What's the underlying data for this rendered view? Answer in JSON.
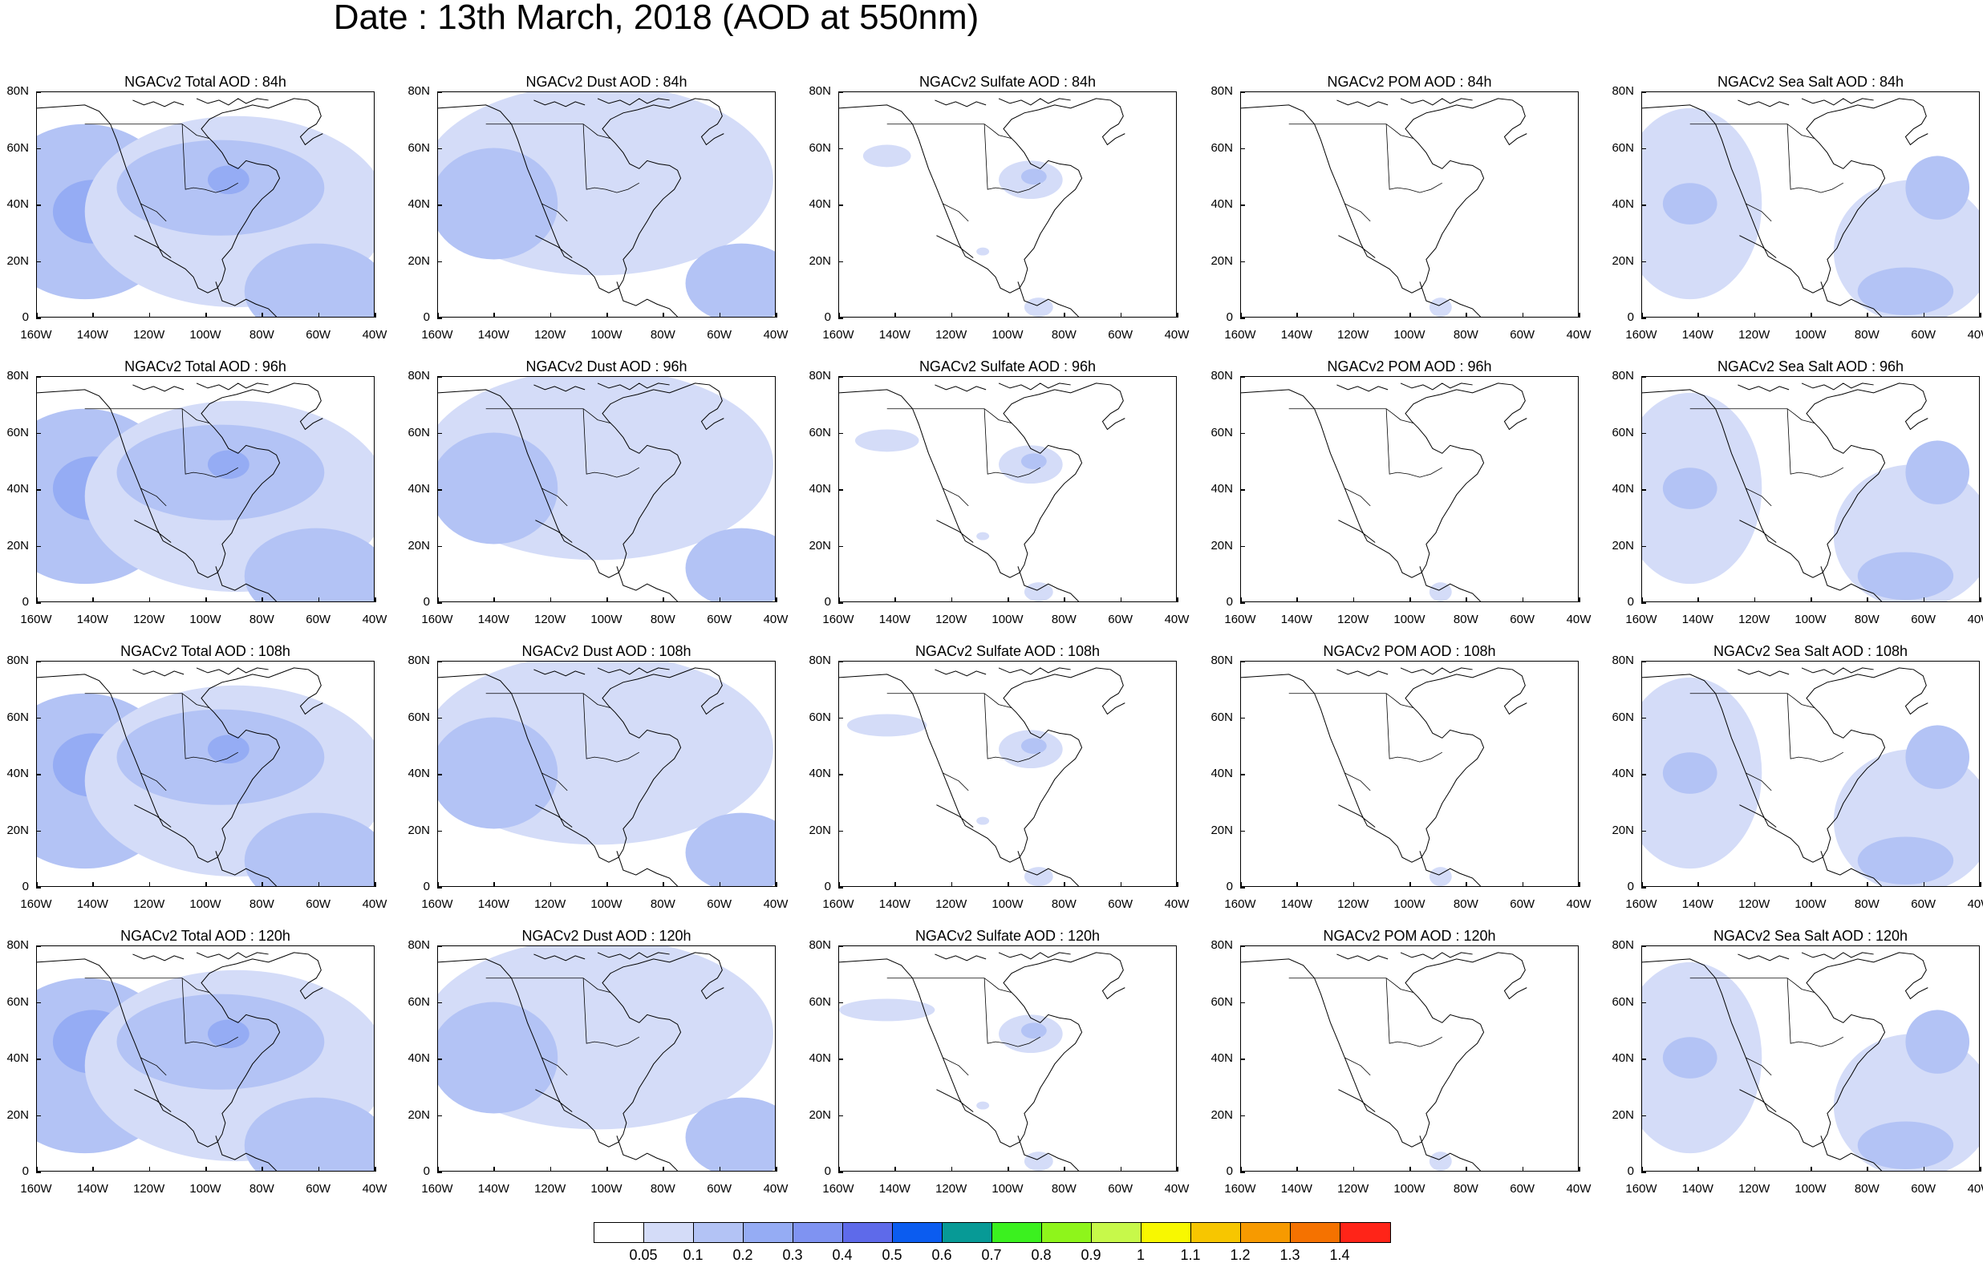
{
  "title": "Date : 13th March, 2018 (AOD at 550nm)",
  "y_tick_labels": [
    "80N",
    "60N",
    "40N",
    "20N",
    "0"
  ],
  "x_tick_labels": [
    "160W",
    "140W",
    "120W",
    "100W",
    "80W",
    "60W",
    "40W"
  ],
  "panels": [
    {
      "title": "NGACv2 Total AOD : 84h",
      "species": "total"
    },
    {
      "title": "NGACv2 Dust AOD : 84h",
      "species": "dust"
    },
    {
      "title": "NGACv2 Sulfate AOD : 84h",
      "species": "sulfate"
    },
    {
      "title": "NGACv2 POM AOD : 84h",
      "species": "pom"
    },
    {
      "title": "NGACv2 Sea Salt AOD : 84h",
      "species": "seasalt"
    },
    {
      "title": "NGACv2 Total AOD : 96h",
      "species": "total"
    },
    {
      "title": "NGACv2 Dust AOD : 96h",
      "species": "dust"
    },
    {
      "title": "NGACv2 Sulfate AOD : 96h",
      "species": "sulfate"
    },
    {
      "title": "NGACv2 POM AOD : 96h",
      "species": "pom"
    },
    {
      "title": "NGACv2 Sea Salt AOD : 96h",
      "species": "seasalt"
    },
    {
      "title": "NGACv2 Total AOD : 108h",
      "species": "total"
    },
    {
      "title": "NGACv2 Dust AOD : 108h",
      "species": "dust"
    },
    {
      "title": "NGACv2 Sulfate AOD : 108h",
      "species": "sulfate"
    },
    {
      "title": "NGACv2 POM AOD : 108h",
      "species": "pom"
    },
    {
      "title": "NGACv2 Sea Salt AOD : 108h",
      "species": "seasalt"
    },
    {
      "title": "NGACv2 Total AOD : 120h",
      "species": "total"
    },
    {
      "title": "NGACv2 Dust AOD : 120h",
      "species": "dust"
    },
    {
      "title": "NGACv2 Sulfate AOD : 120h",
      "species": "sulfate"
    },
    {
      "title": "NGACv2 POM AOD : 120h",
      "species": "pom"
    },
    {
      "title": "NGACv2 Sea Salt  AOD : 120h",
      "species": "seasalt"
    }
  ],
  "colorbar": {
    "labels": [
      "0.05",
      "0.1",
      "0.2",
      "0.3",
      "0.4",
      "0.5",
      "0.6",
      "0.7",
      "0.8",
      "0.9",
      "1",
      "1.1",
      "1.2",
      "1.3",
      "1.4"
    ],
    "colors": [
      "#ffffff",
      "#d4dcf8",
      "#b3c3f5",
      "#95acf4",
      "#7f93f2",
      "#5e6aea",
      "#0b5cf0",
      "#079a96",
      "#3bf11f",
      "#8ef51b",
      "#c7f94a",
      "#f8f800",
      "#f7c600",
      "#f79a00",
      "#f57200",
      "#ff2418"
    ]
  }
}
